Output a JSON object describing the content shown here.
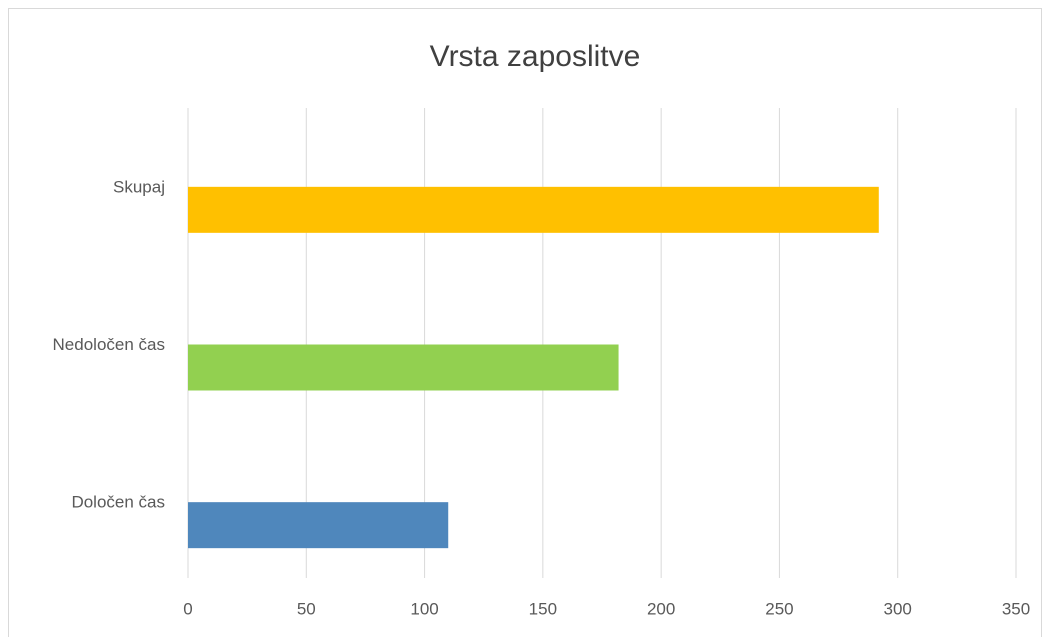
{
  "chart_data": {
    "type": "hbar",
    "title": "Vrsta zaposlitve",
    "categories": [
      "Določen čas",
      "Nedoločen čas",
      "Skupaj"
    ],
    "values": [
      110,
      182,
      292
    ],
    "colors": [
      "#4f87bc",
      "#92d050",
      "#ffc000"
    ],
    "xlim": [
      0,
      350
    ],
    "xticks": [
      0,
      50,
      100,
      150,
      200,
      250,
      300,
      350
    ],
    "grid": true
  }
}
